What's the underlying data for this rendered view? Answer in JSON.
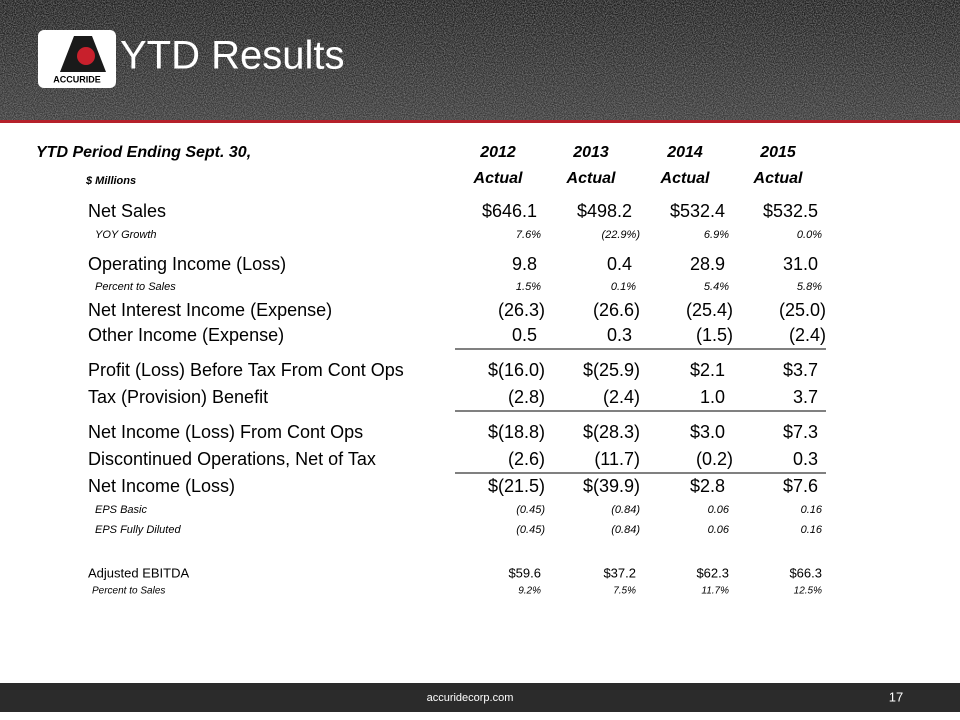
{
  "header": {
    "title": "YTD Results",
    "logo_text": "ACCURIDE"
  },
  "table": {
    "corner": "YTD Period Ending Sept. 30,",
    "unit": "$ Millions",
    "years": [
      "2012",
      "2013",
      "2014",
      "2015"
    ],
    "subheads": [
      "Actual",
      "Actual",
      "Actual",
      "Actual"
    ],
    "rows": [
      {
        "label": "Net Sales",
        "values": [
          "$646.1",
          "$498.2",
          "$532.4",
          "$532.5"
        ]
      },
      {
        "label": "YOY Growth",
        "values": [
          "7.6%",
          "(22.9%)",
          "6.9%",
          "0.0%"
        ]
      },
      {
        "label": "Operating Income (Loss)",
        "values": [
          "9.8",
          "0.4",
          "28.9",
          "31.0"
        ]
      },
      {
        "label": "Percent to Sales",
        "values": [
          "1.5%",
          "0.1%",
          "5.4%",
          "5.8%"
        ]
      },
      {
        "label": "Net Interest Income (Expense)",
        "values": [
          "(26.3)",
          "(26.6)",
          "(25.4)",
          "(25.0)"
        ]
      },
      {
        "label": "Other Income (Expense)",
        "values": [
          "0.5",
          "0.3",
          "(1.5)",
          "(2.4)"
        ]
      },
      {
        "label": "Profit (Loss) Before Tax From Cont Ops",
        "values": [
          "$(16.0)",
          "$(25.9)",
          "$2.1",
          "$3.7"
        ]
      },
      {
        "label": "Tax (Provision) Benefit",
        "values": [
          "(2.8)",
          "(2.4)",
          "1.0",
          "3.7"
        ]
      },
      {
        "label": "Net Income (Loss) From Cont Ops",
        "values": [
          "$(18.8)",
          "$(28.3)",
          "$3.0",
          "$7.3"
        ]
      },
      {
        "label": "Discontinued Operations, Net of Tax",
        "values": [
          "(2.6)",
          "(11.7)",
          "(0.2)",
          "0.3"
        ]
      },
      {
        "label": "Net Income (Loss)",
        "values": [
          "$(21.5)",
          "$(39.9)",
          "$2.8",
          "$7.6"
        ]
      },
      {
        "label": "EPS Basic",
        "values": [
          "(0.45)",
          "(0.84)",
          "0.06",
          "0.16"
        ]
      },
      {
        "label": "EPS Fully Diluted",
        "values": [
          "(0.45)",
          "(0.84)",
          "0.06",
          "0.16"
        ]
      },
      {
        "label": "Adjusted EBITDA",
        "values": [
          "$59.6",
          "$37.2",
          "$62.3",
          "$66.3"
        ]
      },
      {
        "label": "Percent to Sales",
        "values": [
          "9.2%",
          "7.5%",
          "11.7%",
          "12.5%"
        ]
      }
    ]
  },
  "footer": {
    "url": "accuridecorp.com",
    "page": "17"
  }
}
